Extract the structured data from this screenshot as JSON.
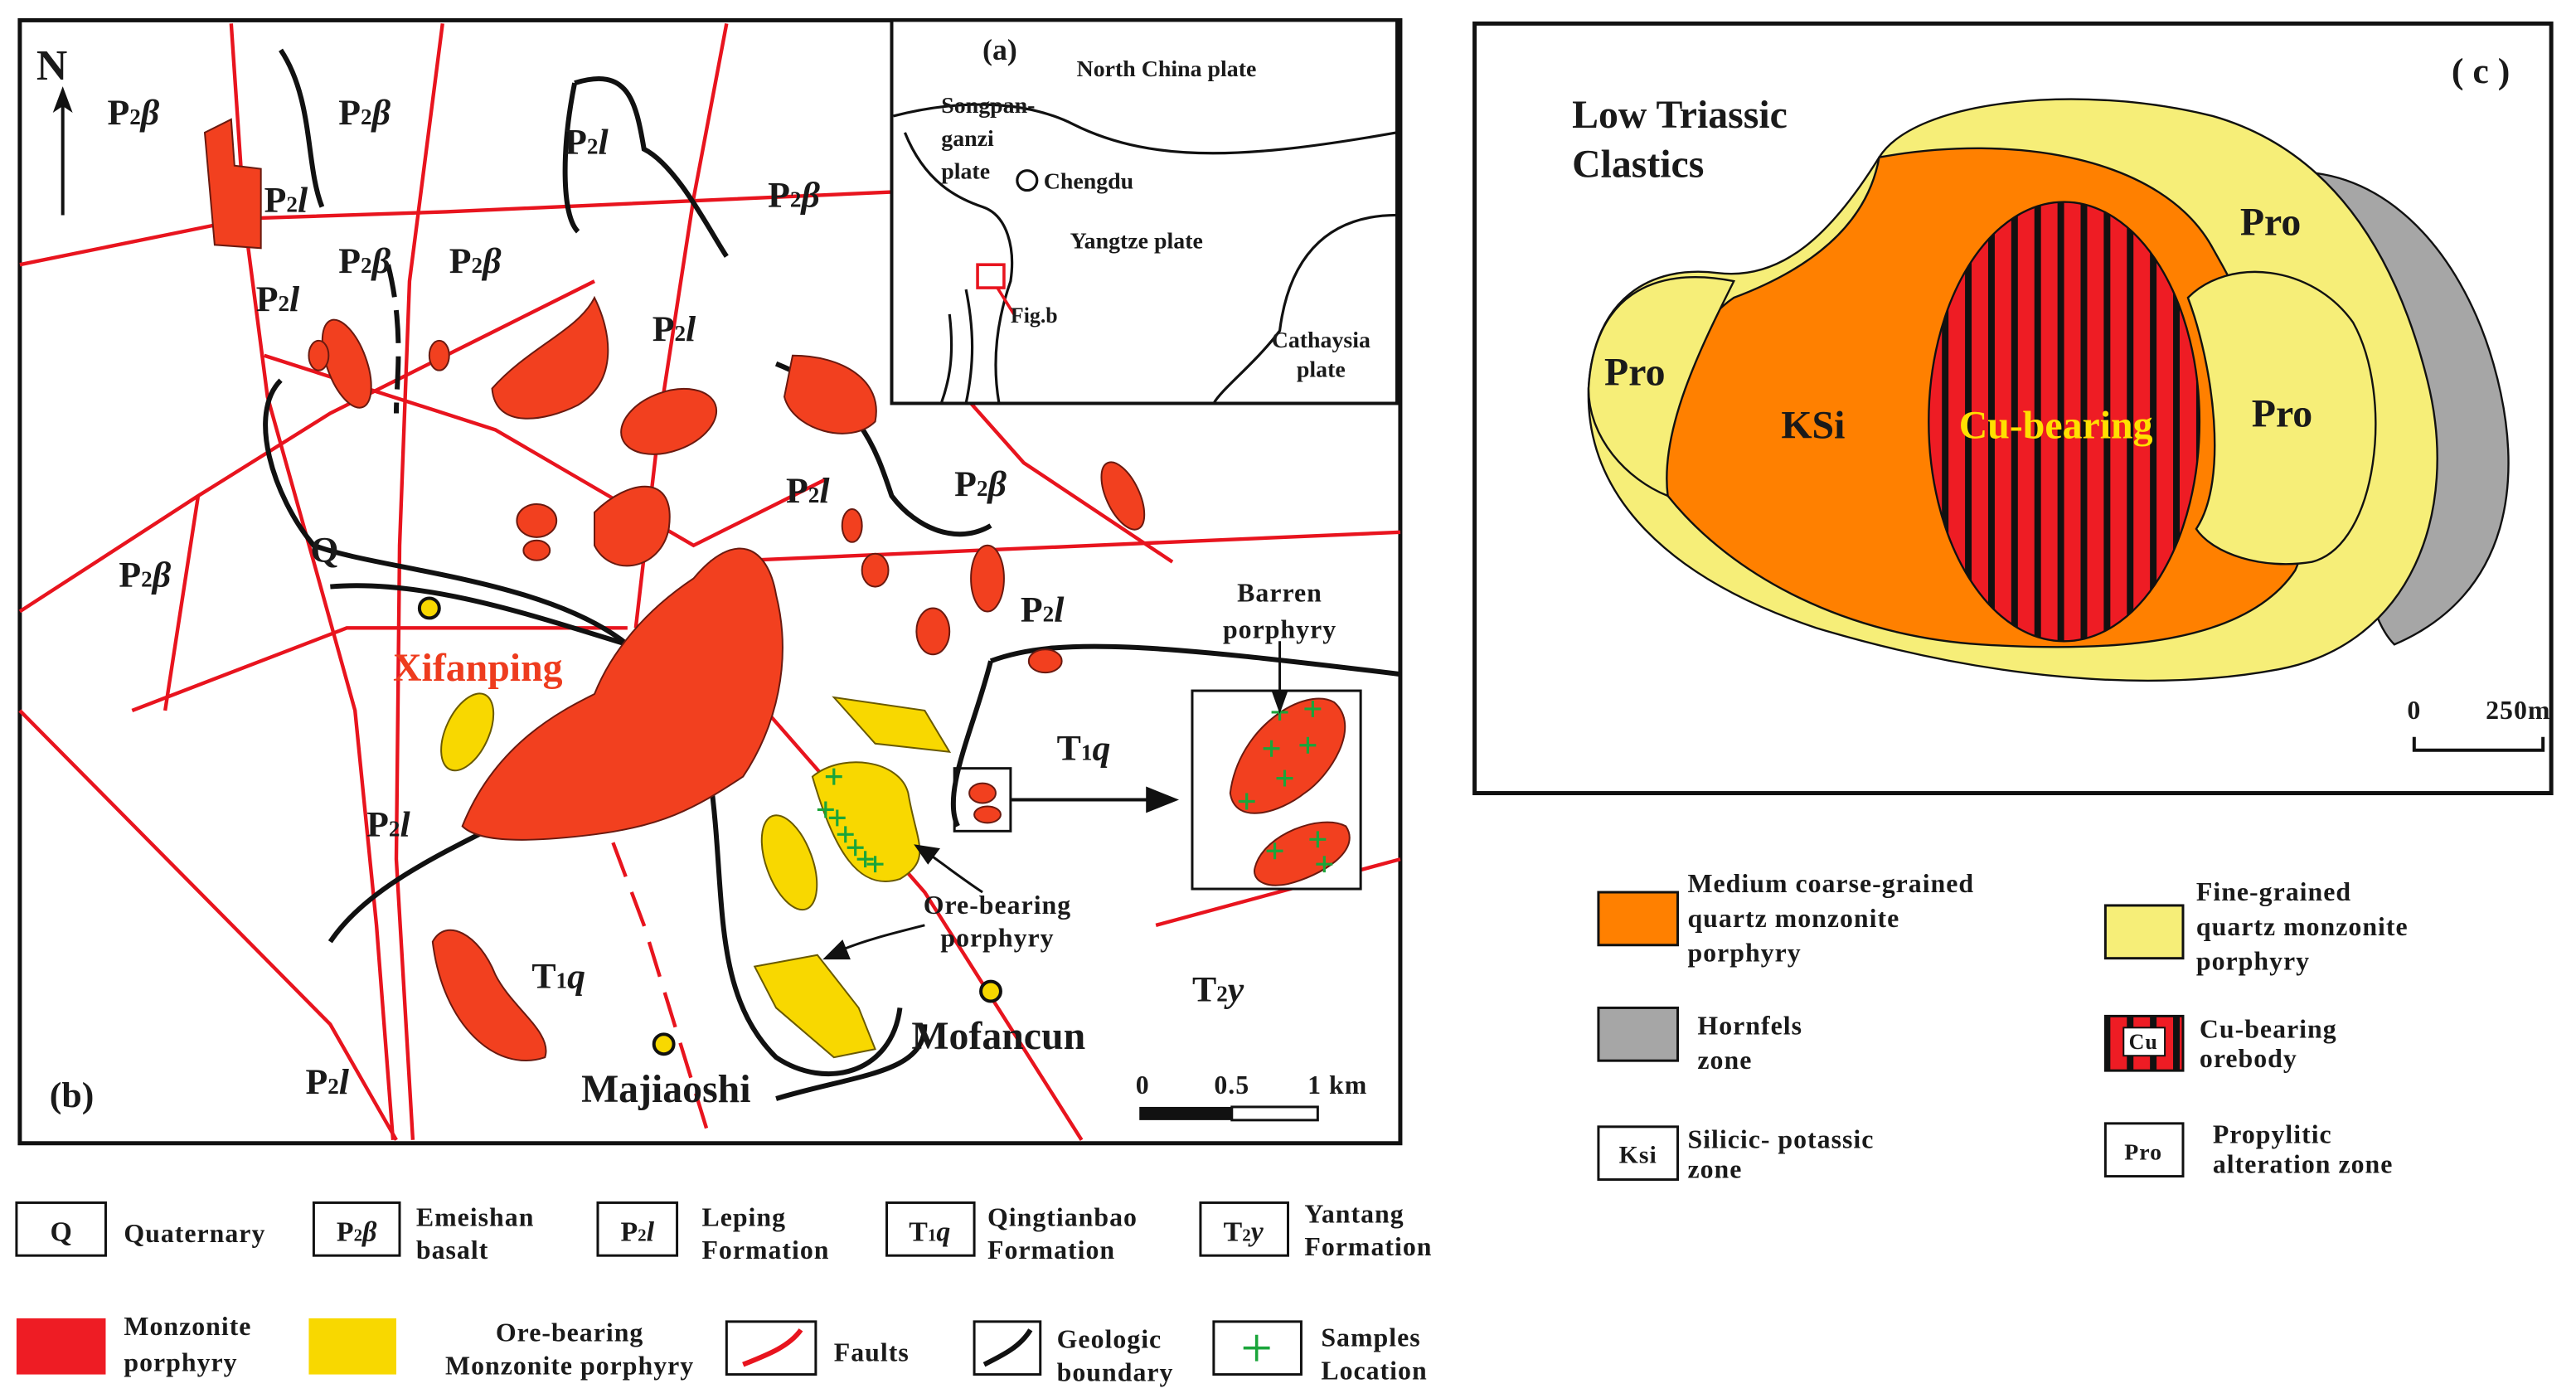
{
  "map_b": {
    "panel_label": "(b)",
    "north": "N",
    "labels": [
      {
        "main": "P",
        "sub": "2",
        "suffix": "β"
      },
      {
        "main": "P",
        "sub": "2",
        "suffix": "β"
      },
      {
        "main": "P",
        "sub": "2",
        "suffix": "l"
      },
      {
        "main": "P",
        "sub": "2",
        "suffix": "l"
      },
      {
        "main": "P",
        "sub": "2",
        "suffix": "β"
      },
      {
        "main": "P",
        "sub": "2",
        "suffix": "β"
      },
      {
        "main": "P",
        "sub": "2",
        "suffix": "β"
      },
      {
        "main": "P",
        "sub": "2",
        "suffix": "l"
      },
      {
        "main": "P",
        "sub": "2",
        "suffix": "l"
      },
      {
        "main": "P",
        "sub": "2",
        "suffix": "l"
      },
      {
        "main": "P",
        "sub": "2",
        "suffix": "β"
      },
      {
        "main": "P",
        "sub": "2",
        "suffix": "β"
      },
      {
        "main": "Q"
      },
      {
        "main": "P",
        "sub": "2",
        "suffix": "l"
      },
      {
        "main": "T",
        "sub": "1",
        "suffix": "q"
      },
      {
        "main": "P",
        "sub": "2",
        "suffix": "l"
      },
      {
        "main": "T",
        "sub": "1",
        "suffix": "q"
      },
      {
        "main": "T",
        "sub": "2",
        "suffix": "y"
      },
      {
        "main": "P",
        "sub": "2",
        "suffix": "l"
      }
    ],
    "places": [
      "Xifanping",
      "Majiaoshi",
      "Mofancun"
    ],
    "barren": [
      "Barren",
      "porphyry"
    ],
    "ore": [
      "Ore-bearing",
      "porphyry"
    ],
    "scale": [
      "0",
      "0.5",
      "1 km"
    ]
  },
  "inset_a": {
    "panel_label": "(a)",
    "north_china": "North China plate",
    "songpan": [
      "Songpan-",
      "ganzi",
      "plate"
    ],
    "chengdu": "Chengdu",
    "yangtze": "Yangtze plate",
    "fig": "Fig.b",
    "cathaysia": [
      "Cathaysia",
      "plate"
    ]
  },
  "panel_c": {
    "panel_label": "( c )",
    "clastics": [
      "Low Triassic",
      "Clastics"
    ],
    "zones": [
      "Pro",
      "KSi",
      "Cu-bearing",
      "Pro",
      "Pro"
    ],
    "scale": [
      "0",
      "250m"
    ]
  },
  "legend_left": [
    {
      "code": {
        "main": "Q"
      },
      "name": [
        "Quaternary"
      ]
    },
    {
      "code": {
        "main": "P",
        "sub": "2",
        "suffix": "β"
      },
      "name": [
        "Emeishan",
        "basalt"
      ]
    },
    {
      "code": {
        "main": "P",
        "sub": "2",
        "suffix": "l"
      },
      "name": [
        "Leping",
        "Formation"
      ]
    },
    {
      "code": {
        "main": "T",
        "sub": "1",
        "suffix": "q"
      },
      "name": [
        "Qingtianbao",
        "Formation"
      ]
    },
    {
      "code": {
        "main": "T",
        "sub": "2",
        "suffix": "y"
      },
      "name": [
        "Yantang",
        "Formation"
      ]
    },
    {
      "name": [
        "Monzonite",
        "porphyry"
      ]
    },
    {
      "name": [
        "Ore-bearing",
        "Monzonite porphyry"
      ]
    },
    {
      "name": [
        "Faults"
      ]
    },
    {
      "name": [
        "Geologic",
        "boundary"
      ]
    },
    {
      "name": [
        "Samples",
        "Location"
      ]
    }
  ],
  "legend_right": [
    {
      "name": [
        "Medium coarse-grained",
        "quartz monzonite",
        "porphyry"
      ]
    },
    {
      "name": [
        "Fine-grained",
        "quartz monzonite",
        "porphyry"
      ]
    },
    {
      "name": [
        "Hornfels",
        "zone"
      ]
    },
    {
      "code": "Cu",
      "name": [
        "Cu-bearing",
        "orebody"
      ]
    },
    {
      "code": "Ksi",
      "name": [
        "Silicic- potassic",
        "zone"
      ]
    },
    {
      "code": "Pro",
      "name": [
        "Propylitic",
        "alteration zone"
      ]
    }
  ]
}
